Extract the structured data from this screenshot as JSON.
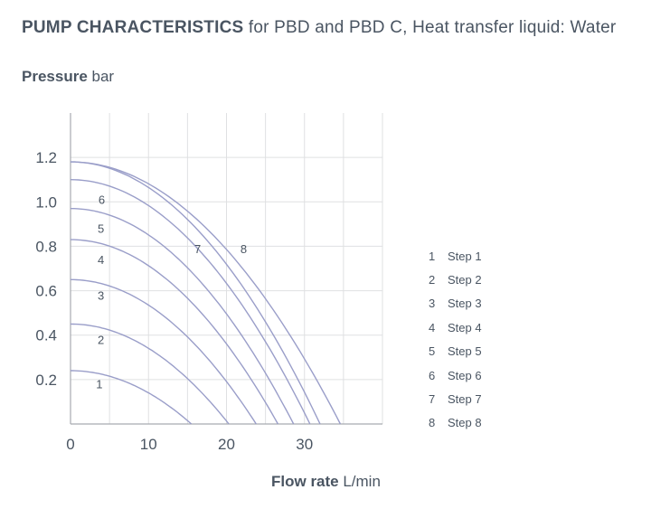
{
  "header": {
    "title_bold": "PUMP CHARACTERISTICS",
    "title_rest": " for PBD and PBD C, Heat transfer liquid: Water"
  },
  "axes": {
    "y_label_bold": "Pressure",
    "y_label_unit": " bar",
    "x_label_bold": "Flow rate",
    "x_label_unit": " L/min"
  },
  "colors": {
    "curve": "#9a9ec9",
    "grid": "#dfe0e2",
    "axis": "#a8abb0",
    "text": "#4a5562"
  },
  "chart_data": {
    "type": "line",
    "xlim": [
      0,
      40
    ],
    "ylim": [
      0,
      1.4
    ],
    "x_ticks": [
      0,
      10,
      20,
      30
    ],
    "x_tick_labels": [
      "0",
      "10",
      "20",
      "30"
    ],
    "y_ticks": [
      0.2,
      0.4,
      0.6,
      0.8,
      1.0,
      1.2
    ],
    "y_tick_labels": [
      "0.2",
      "0.4",
      "0.6",
      "0.8",
      "1.0",
      "1.2"
    ],
    "x_gridlines": [
      0,
      5,
      10,
      15,
      20,
      25,
      30,
      35,
      40
    ],
    "y_gridlines": [
      0.2,
      0.4,
      0.6,
      0.8,
      1.0,
      1.2
    ],
    "grid": true,
    "legend_position": "right",
    "series": [
      {
        "label": "1",
        "name": "Step 1",
        "shutoff": 0.24,
        "max_flow": 15.5,
        "label_pos": [
          3.7,
          0.16
        ]
      },
      {
        "label": "2",
        "name": "Step 2",
        "shutoff": 0.45,
        "max_flow": 20.3,
        "label_pos": [
          3.9,
          0.36
        ]
      },
      {
        "label": "3",
        "name": "Step 3",
        "shutoff": 0.65,
        "max_flow": 23.8,
        "label_pos": [
          3.9,
          0.56
        ]
      },
      {
        "label": "4",
        "name": "Step 4",
        "shutoff": 0.83,
        "max_flow": 26.6,
        "label_pos": [
          3.9,
          0.72
        ]
      },
      {
        "label": "5",
        "name": "Step 5",
        "shutoff": 0.97,
        "max_flow": 28.6,
        "label_pos": [
          3.9,
          0.86
        ]
      },
      {
        "label": "6",
        "name": "Step 6",
        "shutoff": 1.1,
        "max_flow": 30.7,
        "label_pos": [
          4.0,
          0.99
        ]
      },
      {
        "label": "7",
        "name": "Step 7",
        "shutoff": 1.18,
        "max_flow": 32.0,
        "label_pos": [
          16.3,
          0.77
        ]
      },
      {
        "label": "8",
        "name": "Step 8",
        "shutoff": 1.18,
        "max_flow": 34.6,
        "label_pos": [
          22.2,
          0.77
        ]
      }
    ]
  }
}
